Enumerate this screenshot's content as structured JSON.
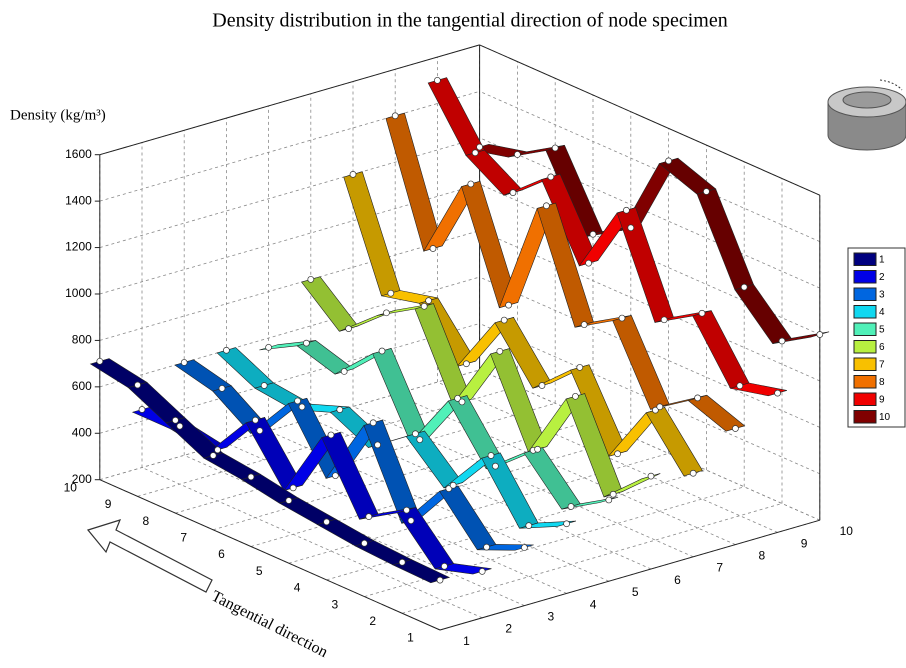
{
  "chart_data": {
    "type": "ribbon3d",
    "title": "Density distribution in the tangential direction of  node specimen",
    "z_label": "Density (kg/m³)",
    "x_label": "Tangential direction",
    "xlim": [
      1,
      10
    ],
    "xticks": [
      1,
      2,
      3,
      4,
      5,
      6,
      7,
      8,
      9,
      10
    ],
    "ylim": [
      1,
      10
    ],
    "yticks": [
      1,
      2,
      3,
      4,
      5,
      6,
      7,
      8,
      9,
      10
    ],
    "zlim": [
      200,
      1600
    ],
    "zticks": [
      200,
      400,
      600,
      800,
      1000,
      1200,
      1400,
      1600
    ],
    "grid": true,
    "series": [
      {
        "name": "1",
        "color": "#00007f",
        "values": [
          415,
          420,
          430,
          450,
          470,
          500,
          520,
          600,
          680,
          710
        ]
      },
      {
        "name": "2",
        "color": "#0000e6",
        "values": [
          400,
          350,
          520,
          420,
          700,
          400,
          620,
          420,
          450,
          450
        ]
      },
      {
        "name": "3",
        "color": "#0066e0",
        "values": [
          450,
          380,
          560,
          350,
          700,
          400,
          650,
          450,
          560,
          600
        ]
      },
      {
        "name": "4",
        "color": "#10d8f0",
        "values": [
          500,
          420,
          650,
          450,
          600,
          480,
          560,
          500,
          520,
          600
        ]
      },
      {
        "name": "5",
        "color": "#50f0b8",
        "values": [
          550,
          450,
          620,
          480,
          700,
          450,
          760,
          600,
          650,
          560
        ]
      },
      {
        "name": "6",
        "color": "#b8f040",
        "values": [
          600,
          450,
          800,
          500,
          850,
          560,
          900,
          800,
          660,
          800
        ]
      },
      {
        "name": "7",
        "color": "#f8c000",
        "values": [
          560,
          760,
          500,
          800,
          650,
          860,
          600,
          800,
          760,
          1200
        ]
      },
      {
        "name": "8",
        "color": "#f07000",
        "values": [
          700,
          760,
          650,
          960,
          860,
          1300,
          800,
          1250,
          900,
          1400
        ]
      },
      {
        "name": "9",
        "color": "#f00000",
        "values": [
          800,
          760,
          1000,
          900,
          1300,
          1000,
          1300,
          1160,
          1260,
          1500
        ]
      },
      {
        "name": "10",
        "color": "#800000",
        "values": [
          1000,
          900,
          1060,
          1400,
          1460,
          1100,
          1000,
          1300,
          1200,
          1160
        ]
      }
    ]
  }
}
